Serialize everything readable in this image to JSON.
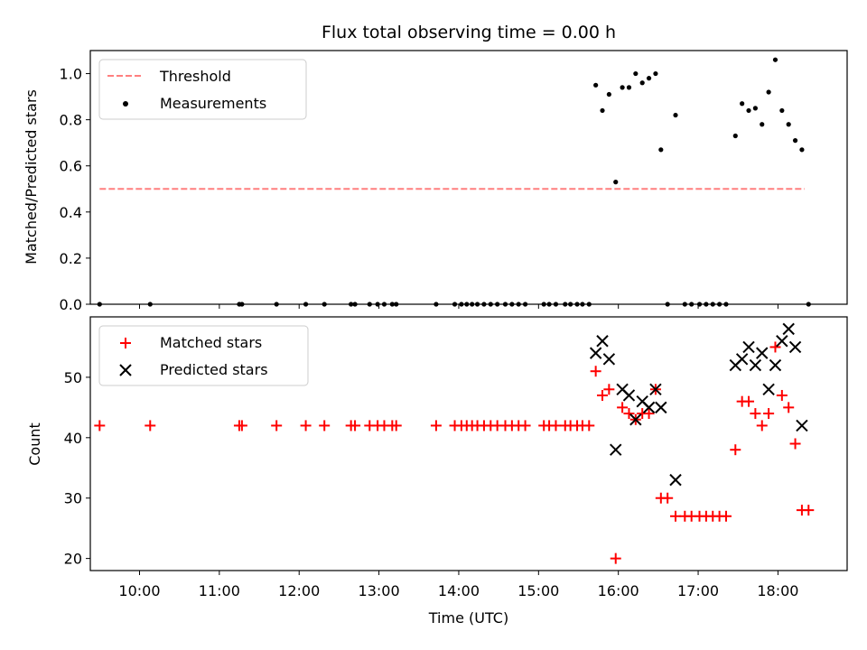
{
  "chart_data": [
    {
      "type": "scatter",
      "title": "Flux total observing time = 0.00 h",
      "ylabel": "Matched/Predicted stars",
      "xlim": [
        "09:23",
        "18:52"
      ],
      "ylim": [
        0,
        1.1
      ],
      "yticks": [
        "0.0",
        "0.2",
        "0.4",
        "0.6",
        "0.8",
        "1.0"
      ],
      "legend": "top-left",
      "threshold": {
        "name": "Threshold",
        "value": 0.5,
        "x": [
          "09:30",
          "18:20"
        ],
        "color": "#ff7f7f"
      },
      "series": [
        {
          "name": "Measurements",
          "color": "#000000",
          "points": [
            [
              "09:30",
              0
            ],
            [
              "10:08",
              0
            ],
            [
              "11:15",
              0
            ],
            [
              "11:17",
              0
            ],
            [
              "11:43",
              0
            ],
            [
              "12:05",
              0
            ],
            [
              "12:19",
              0
            ],
            [
              "12:39",
              0
            ],
            [
              "12:42",
              0
            ],
            [
              "12:53",
              0
            ],
            [
              "12:59",
              0
            ],
            [
              "13:04",
              0
            ],
            [
              "13:10",
              0
            ],
            [
              "13:13",
              0
            ],
            [
              "13:43",
              0
            ],
            [
              "13:57",
              0
            ],
            [
              "14:02",
              0
            ],
            [
              "14:06",
              0
            ],
            [
              "14:10",
              0
            ],
            [
              "14:14",
              0
            ],
            [
              "14:19",
              0
            ],
            [
              "14:24",
              0
            ],
            [
              "14:29",
              0
            ],
            [
              "14:35",
              0
            ],
            [
              "14:40",
              0
            ],
            [
              "14:45",
              0
            ],
            [
              "14:50",
              0
            ],
            [
              "15:04",
              0
            ],
            [
              "15:08",
              0
            ],
            [
              "15:13",
              0
            ],
            [
              "15:20",
              0
            ],
            [
              "15:24",
              0
            ],
            [
              "15:29",
              0
            ],
            [
              "15:33",
              0
            ],
            [
              "15:38",
              0
            ],
            [
              "15:43",
              0.95
            ],
            [
              "15:48",
              0.84
            ],
            [
              "15:53",
              0.91
            ],
            [
              "15:58",
              0.53
            ],
            [
              "16:03",
              0.94
            ],
            [
              "16:08",
              0.94
            ],
            [
              "16:13",
              1.0
            ],
            [
              "16:18",
              0.96
            ],
            [
              "16:23",
              0.98
            ],
            [
              "16:28",
              1.0
            ],
            [
              "16:32",
              0.67
            ],
            [
              "16:37",
              0
            ],
            [
              "16:43",
              0.82
            ],
            [
              "16:50",
              0
            ],
            [
              "16:55",
              0
            ],
            [
              "17:01",
              0
            ],
            [
              "17:06",
              0
            ],
            [
              "17:11",
              0
            ],
            [
              "17:16",
              0
            ],
            [
              "17:21",
              0
            ],
            [
              "17:28",
              0.73
            ],
            [
              "17:33",
              0.87
            ],
            [
              "17:38",
              0.84
            ],
            [
              "17:43",
              0.85
            ],
            [
              "17:48",
              0.78
            ],
            [
              "17:53",
              0.92
            ],
            [
              "17:58",
              1.06
            ],
            [
              "18:03",
              0.84
            ],
            [
              "18:08",
              0.78
            ],
            [
              "18:13",
              0.71
            ],
            [
              "18:18",
              0.67
            ],
            [
              "18:23",
              0
            ]
          ]
        }
      ]
    },
    {
      "type": "scatter",
      "xlabel": "Time (UTC)",
      "ylabel": "Count",
      "xlim": [
        "09:23",
        "18:52"
      ],
      "ylim": [
        18,
        60
      ],
      "xticks": [
        "10:00",
        "11:00",
        "12:00",
        "13:00",
        "14:00",
        "15:00",
        "16:00",
        "17:00",
        "18:00"
      ],
      "yticks": [
        "20",
        "30",
        "40",
        "50"
      ],
      "legend": "top-left",
      "series": [
        {
          "name": "Matched stars",
          "marker": "plus",
          "color": "#ff0000",
          "points": [
            [
              "09:30",
              42
            ],
            [
              "10:08",
              42
            ],
            [
              "11:15",
              42
            ],
            [
              "11:17",
              42
            ],
            [
              "11:43",
              42
            ],
            [
              "12:05",
              42
            ],
            [
              "12:19",
              42
            ],
            [
              "12:39",
              42
            ],
            [
              "12:42",
              42
            ],
            [
              "12:53",
              42
            ],
            [
              "12:59",
              42
            ],
            [
              "13:04",
              42
            ],
            [
              "13:10",
              42
            ],
            [
              "13:13",
              42
            ],
            [
              "13:43",
              42
            ],
            [
              "13:57",
              42
            ],
            [
              "14:02",
              42
            ],
            [
              "14:06",
              42
            ],
            [
              "14:10",
              42
            ],
            [
              "14:14",
              42
            ],
            [
              "14:19",
              42
            ],
            [
              "14:24",
              42
            ],
            [
              "14:29",
              42
            ],
            [
              "14:35",
              42
            ],
            [
              "14:40",
              42
            ],
            [
              "14:45",
              42
            ],
            [
              "14:50",
              42
            ],
            [
              "15:04",
              42
            ],
            [
              "15:08",
              42
            ],
            [
              "15:13",
              42
            ],
            [
              "15:20",
              42
            ],
            [
              "15:24",
              42
            ],
            [
              "15:29",
              42
            ],
            [
              "15:33",
              42
            ],
            [
              "15:38",
              42
            ],
            [
              "15:43",
              51
            ],
            [
              "15:48",
              47
            ],
            [
              "15:53",
              48
            ],
            [
              "15:58",
              20
            ],
            [
              "16:03",
              45
            ],
            [
              "16:08",
              44
            ],
            [
              "16:13",
              43
            ],
            [
              "16:18",
              44
            ],
            [
              "16:23",
              44
            ],
            [
              "16:28",
              48
            ],
            [
              "16:32",
              30
            ],
            [
              "16:37",
              30
            ],
            [
              "16:43",
              27
            ],
            [
              "16:50",
              27
            ],
            [
              "16:55",
              27
            ],
            [
              "17:01",
              27
            ],
            [
              "17:06",
              27
            ],
            [
              "17:11",
              27
            ],
            [
              "17:16",
              27
            ],
            [
              "17:21",
              27
            ],
            [
              "17:28",
              38
            ],
            [
              "17:33",
              46
            ],
            [
              "17:38",
              46
            ],
            [
              "17:43",
              44
            ],
            [
              "17:48",
              42
            ],
            [
              "17:53",
              44
            ],
            [
              "17:58",
              55
            ],
            [
              "18:03",
              47
            ],
            [
              "18:08",
              45
            ],
            [
              "18:13",
              39
            ],
            [
              "18:18",
              28
            ],
            [
              "18:23",
              28
            ]
          ]
        },
        {
          "name": "Predicted stars",
          "marker": "x",
          "color": "#000000",
          "points": [
            [
              "15:43",
              54
            ],
            [
              "15:48",
              56
            ],
            [
              "15:53",
              53
            ],
            [
              "15:58",
              38
            ],
            [
              "16:03",
              48
            ],
            [
              "16:08",
              47
            ],
            [
              "16:13",
              43
            ],
            [
              "16:18",
              46
            ],
            [
              "16:23",
              45
            ],
            [
              "16:28",
              48
            ],
            [
              "16:32",
              45
            ],
            [
              "16:43",
              33
            ],
            [
              "17:28",
              52
            ],
            [
              "17:33",
              53
            ],
            [
              "17:38",
              55
            ],
            [
              "17:43",
              52
            ],
            [
              "17:48",
              54
            ],
            [
              "17:53",
              48
            ],
            [
              "17:58",
              52
            ],
            [
              "18:03",
              56
            ],
            [
              "18:08",
              58
            ],
            [
              "18:13",
              55
            ],
            [
              "18:18",
              42
            ]
          ]
        }
      ]
    }
  ]
}
